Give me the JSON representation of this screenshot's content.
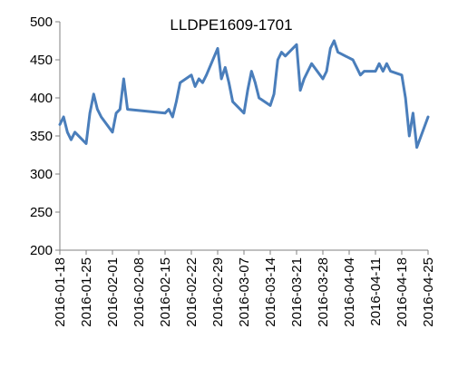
{
  "chart_data": {
    "type": "line",
    "title": "LLDPE1609-1701",
    "xlabel": "",
    "ylabel": "",
    "ylim": [
      200,
      500
    ],
    "yticks": [
      200,
      250,
      300,
      350,
      400,
      450,
      500
    ],
    "xlim": [
      "2016-01-18",
      "2016-04-25"
    ],
    "xticks": [
      "2016-01-18",
      "2016-01-25",
      "2016-02-01",
      "2016-02-08",
      "2016-02-15",
      "2016-02-22",
      "2016-02-29",
      "2016-03-07",
      "2016-03-14",
      "2016-03-21",
      "2016-03-28",
      "2016-04-04",
      "2016-04-11",
      "2016-04-18",
      "2016-04-25"
    ],
    "grid": false,
    "legend": "none",
    "series_color": "#4a7ebb",
    "x": [
      "2016-01-18",
      "2016-01-19",
      "2016-01-20",
      "2016-01-21",
      "2016-01-22",
      "2016-01-25",
      "2016-01-26",
      "2016-01-27",
      "2016-01-28",
      "2016-01-29",
      "2016-02-01",
      "2016-02-02",
      "2016-02-03",
      "2016-02-04",
      "2016-02-05",
      "2016-02-15",
      "2016-02-16",
      "2016-02-17",
      "2016-02-18",
      "2016-02-19",
      "2016-02-22",
      "2016-02-23",
      "2016-02-24",
      "2016-02-25",
      "2016-02-26",
      "2016-02-29",
      "2016-03-01",
      "2016-03-02",
      "2016-03-03",
      "2016-03-04",
      "2016-03-07",
      "2016-03-08",
      "2016-03-09",
      "2016-03-10",
      "2016-03-11",
      "2016-03-14",
      "2016-03-15",
      "2016-03-16",
      "2016-03-17",
      "2016-03-18",
      "2016-03-21",
      "2016-03-22",
      "2016-03-23",
      "2016-03-24",
      "2016-03-25",
      "2016-03-28",
      "2016-03-29",
      "2016-03-30",
      "2016-03-31",
      "2016-04-01",
      "2016-04-05",
      "2016-04-06",
      "2016-04-07",
      "2016-04-08",
      "2016-04-11",
      "2016-04-12",
      "2016-04-13",
      "2016-04-14",
      "2016-04-15",
      "2016-04-18",
      "2016-04-19",
      "2016-04-20",
      "2016-04-21",
      "2016-04-22",
      "2016-04-25"
    ],
    "values": [
      365,
      375,
      355,
      345,
      355,
      340,
      380,
      405,
      385,
      375,
      355,
      380,
      385,
      425,
      385,
      380,
      385,
      375,
      395,
      420,
      430,
      415,
      425,
      420,
      430,
      465,
      425,
      440,
      420,
      395,
      380,
      410,
      435,
      420,
      400,
      390,
      405,
      450,
      460,
      455,
      470,
      410,
      425,
      435,
      445,
      425,
      435,
      465,
      475,
      460,
      450,
      440,
      430,
      435,
      435,
      445,
      435,
      445,
      435,
      430,
      400,
      350,
      380,
      335,
      375
    ]
  }
}
